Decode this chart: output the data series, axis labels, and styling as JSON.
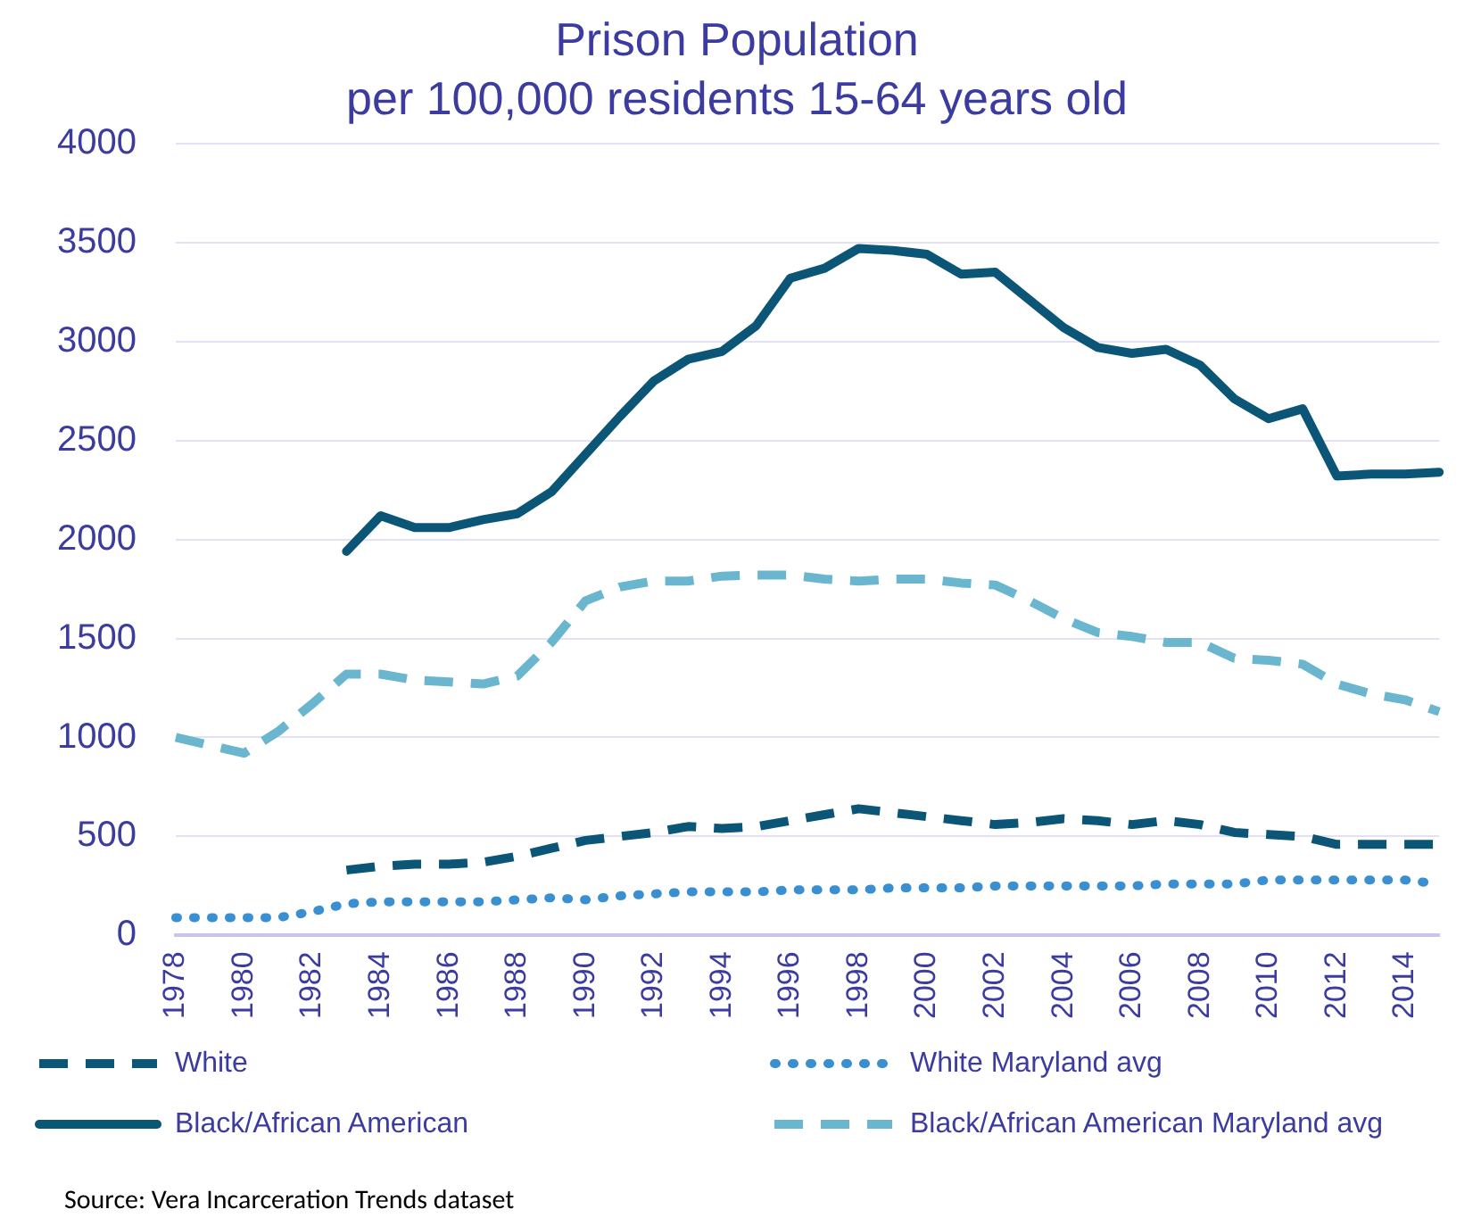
{
  "chart_data": {
    "type": "line",
    "title": "Prison Population",
    "subtitle": "per 100,000 residents 15-64 years old",
    "categories": [
      "1978",
      null,
      "1980",
      null,
      "1982",
      null,
      "1984",
      null,
      "1986",
      null,
      "1988",
      null,
      "1990",
      null,
      "1992",
      null,
      "1994",
      null,
      "1996",
      null,
      "1998",
      null,
      "2000",
      null,
      "2002",
      null,
      "2004",
      null,
      "2006",
      null,
      "2008",
      null,
      "2010",
      null,
      "2012",
      null,
      "2014",
      null
    ],
    "series": [
      {
        "name": "White",
        "color": "#0b5577",
        "line_style": "dashed",
        "values": [
          null,
          null,
          null,
          null,
          null,
          330,
          350,
          360,
          360,
          370,
          400,
          440,
          480,
          500,
          520,
          550,
          540,
          550,
          580,
          610,
          640,
          620,
          600,
          580,
          560,
          570,
          590,
          580,
          560,
          580,
          560,
          520,
          510,
          500,
          460,
          460,
          460,
          460
        ]
      },
      {
        "name": "White Maryland avg",
        "color": "#3a8fd0",
        "line_style": "dotted",
        "values": [
          90,
          90,
          90,
          90,
          120,
          160,
          170,
          170,
          170,
          170,
          180,
          190,
          180,
          200,
          210,
          220,
          220,
          220,
          230,
          230,
          230,
          240,
          240,
          240,
          250,
          250,
          250,
          250,
          250,
          260,
          260,
          260,
          280,
          280,
          280,
          280,
          280,
          260
        ]
      },
      {
        "name": "Black/African American",
        "color": "#0b5577",
        "line_style": "solid",
        "values": [
          null,
          null,
          null,
          null,
          null,
          1940,
          2120,
          2060,
          2060,
          2100,
          2130,
          2240,
          2430,
          2620,
          2800,
          2910,
          2950,
          3080,
          3320,
          3370,
          3470,
          3460,
          3440,
          3340,
          3350,
          3210,
          3070,
          2970,
          2940,
          2960,
          2880,
          2710,
          2610,
          2660,
          2320,
          2330,
          2330,
          2340
        ]
      },
      {
        "name": "Black/African American Maryland avg",
        "color": "#6ab6cf",
        "line_style": "dashed",
        "values": [
          1000,
          960,
          920,
          1030,
          1170,
          1320,
          1320,
          1290,
          1280,
          1270,
          1310,
          1480,
          1690,
          1760,
          1790,
          1790,
          1815,
          1820,
          1820,
          1800,
          1790,
          1800,
          1800,
          1780,
          1770,
          1690,
          1600,
          1530,
          1510,
          1480,
          1480,
          1400,
          1390,
          1370,
          1270,
          1220,
          1190,
          1130
        ]
      }
    ],
    "ylim": [
      0,
      4000
    ],
    "yticks": [
      0,
      500,
      1000,
      1500,
      2000,
      2500,
      3000,
      3500,
      4000
    ],
    "grid": "y",
    "legend": "bottom",
    "marker": "none",
    "annotations": [
      "Source: Vera Incarceration Trends dataset"
    ]
  }
}
